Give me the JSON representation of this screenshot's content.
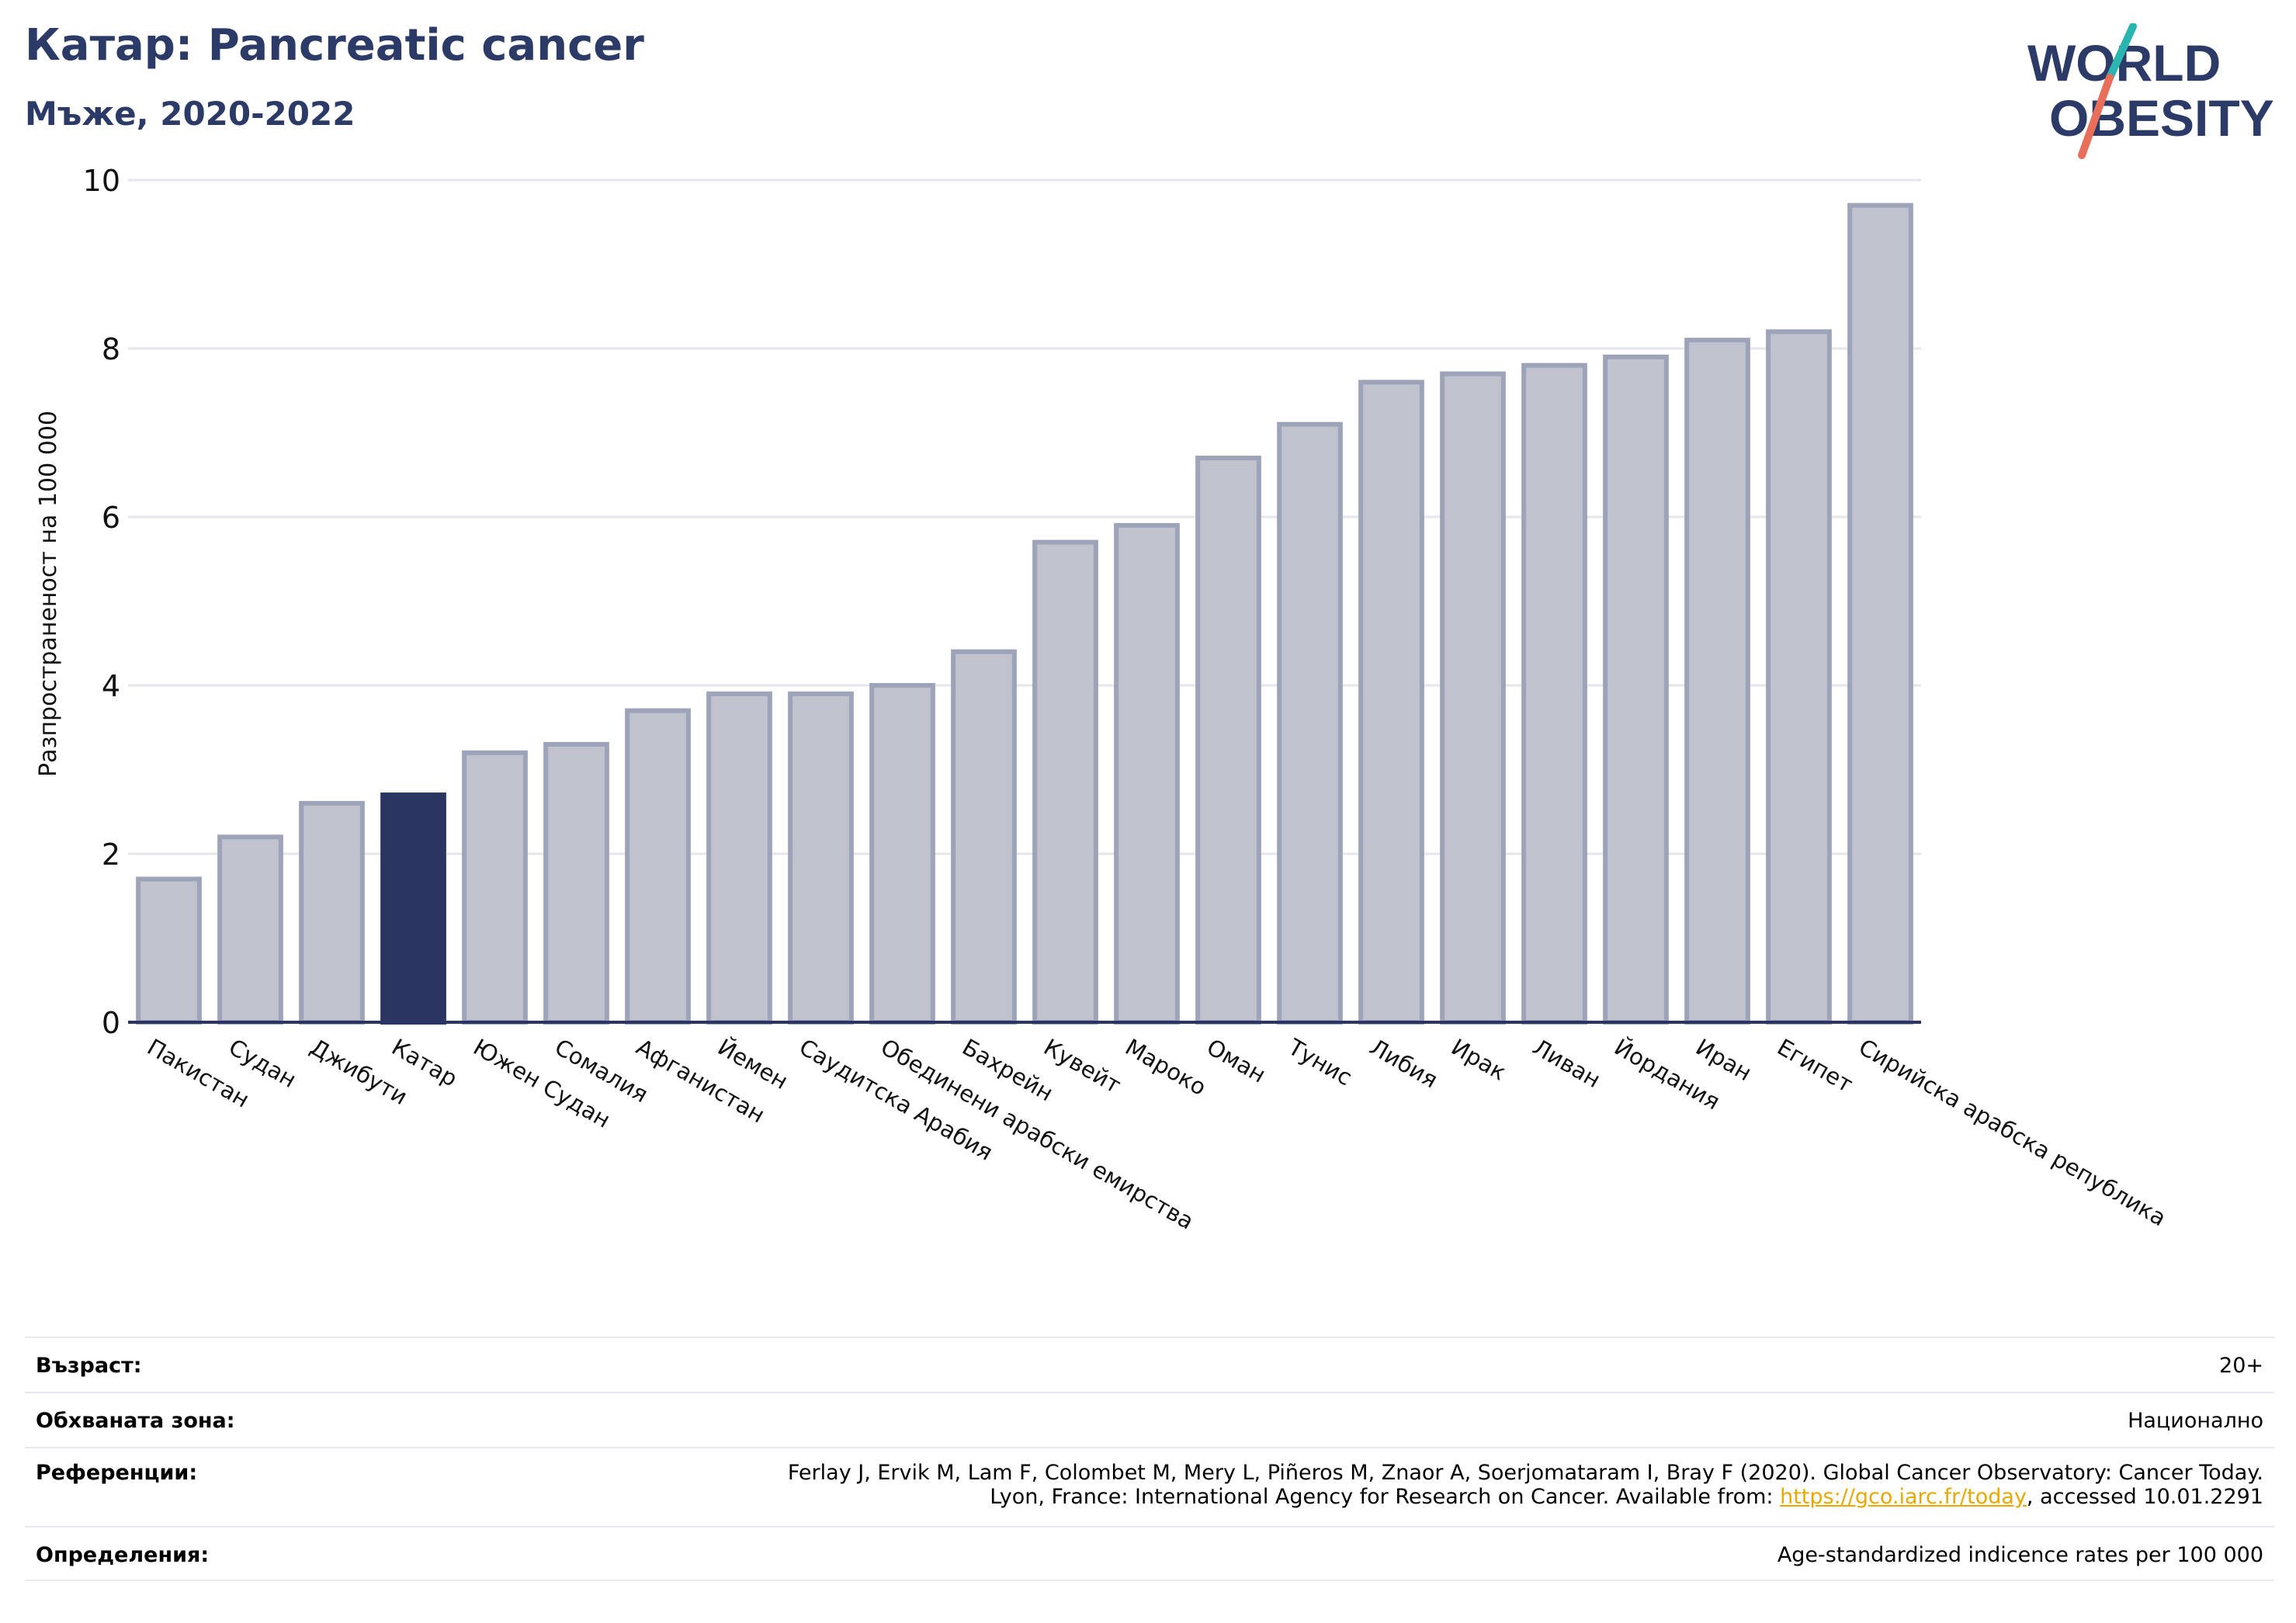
{
  "header": {
    "title": "Катар: Pancreatic cancer",
    "subtitle": "Мъже, 2020-2022"
  },
  "logo": {
    "line1": "WORLD",
    "line2": "OBESITY",
    "colors": {
      "text": "#2b3a67",
      "slash_top": "#2bb5b0",
      "slash_bottom": "#e8705a"
    }
  },
  "chart_data": {
    "type": "bar",
    "ylabel": "Разпространеност  на 100 000",
    "ylim": [
      0,
      10
    ],
    "yticks": [
      0,
      2,
      4,
      6,
      8,
      10
    ],
    "grid": true,
    "categories": [
      "Пакистан",
      "Судан",
      "Джибути",
      "Катар",
      "Южен Судан",
      "Сомалия",
      "Афганистан",
      "Йемен",
      "Саудитска Арабия",
      "Обединени арабски емирства",
      "Бахрейн",
      "Кувейт",
      "Мароко",
      "Оман",
      "Тунис",
      "Либия",
      "Ирак",
      "Ливан",
      "Йордания",
      "Иран",
      "Египет",
      "Сирийска арабска република"
    ],
    "values": [
      1.7,
      2.2,
      2.6,
      2.7,
      3.2,
      3.3,
      3.7,
      3.9,
      3.9,
      4.0,
      4.4,
      5.7,
      5.9,
      6.7,
      7.1,
      7.6,
      7.7,
      7.8,
      7.9,
      8.1,
      8.2,
      9.7
    ],
    "highlight": "Катар",
    "colors": {
      "bar": "#c0c3ce",
      "bar_edge": "#9da3b8",
      "highlight": "#2b3561",
      "axis": "#2b3561",
      "grid": "#e6e6ec"
    }
  },
  "meta": {
    "age_label": "Възраст:",
    "age_value": "20+",
    "area_label": "Обхваната зона:",
    "area_value": "Национално",
    "ref_label": "Референции:",
    "ref_line1": "Ferlay J, Ervik M, Lam F, Colombet M, Mery L, Piñeros M, Znaor A, Soerjomataram I, Bray F (2020). Global Cancer Observatory: Cancer Today.",
    "ref_line2_pre": "Lyon, France: International Agency for Research on Cancer. Available from: ",
    "ref_link": "https://gco.iarc.fr/today",
    "ref_line2_post": ", accessed 10.01.2291",
    "def_label": "Определения:",
    "def_value": "Age-standardized indicence rates per 100 000"
  }
}
